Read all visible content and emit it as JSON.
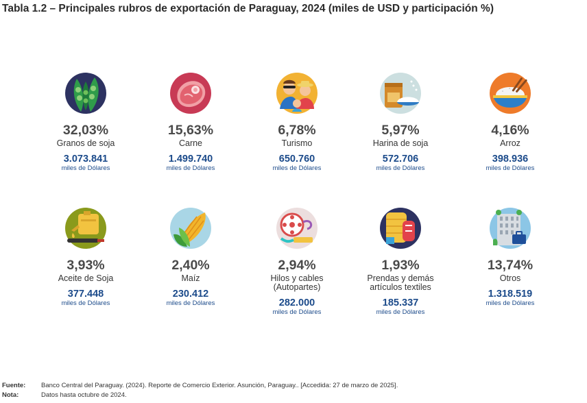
{
  "title": "Tabla 1.2 – Principales rubros de exportación de Paraguay, 2024 (miles de USD y participación %)",
  "items": [
    {
      "icon": "soybean-icon",
      "pct": "32,03%",
      "label": "Granos de soja",
      "value": "3.073.841",
      "unit": "miles de Dólares"
    },
    {
      "icon": "meat-icon",
      "pct": "15,63%",
      "label": "Carne",
      "value": "1.499.740",
      "unit": "miles de Dólares"
    },
    {
      "icon": "tourists-icon",
      "pct": "6,78%",
      "label": "Turismo",
      "value": "650.760",
      "unit": "miles de Dólares"
    },
    {
      "icon": "flour-icon",
      "pct": "5,97%",
      "label": "Harina de soja",
      "value": "572.706",
      "unit": "miles de Dólares"
    },
    {
      "icon": "rice-bowl-icon",
      "pct": "4,16%",
      "label": "Arroz",
      "value": "398.936",
      "unit": "miles de Dólares"
    },
    {
      "icon": "oil-can-icon",
      "pct": "3,93%",
      "label": "Aceite de Soja",
      "value": "377.448",
      "unit": "miles de Dólares"
    },
    {
      "icon": "corn-icon",
      "pct": "2,40%",
      "label": "Maíz",
      "value": "230.412",
      "unit": "miles de Dólares"
    },
    {
      "icon": "cable-reel-icon",
      "pct": "2,94%",
      "label": "Hilos y cables",
      "label2": "(Autopartes)",
      "value": "282.000",
      "unit": "miles de Dólares"
    },
    {
      "icon": "textiles-icon",
      "pct": "1,93%",
      "label": "Prendas y demás",
      "label2": "artículos textiles",
      "value": "185.337",
      "unit": "miles de Dólares"
    },
    {
      "icon": "building-icon",
      "pct": "13,74%",
      "label": "Otros",
      "value": "1.318.519",
      "unit": "miles de Dólares"
    }
  ],
  "footer": {
    "source_key": "Fuente:",
    "source": "Banco Central del Paraguay. (2024). Reporte de Comercio Exterior. Asunción, Paraguay.. [Accedida: 27 de marzo de 2025].",
    "note_key": "Nota:",
    "note": "Datos hasta octubre de 2024."
  },
  "colors": {
    "value": "#1b4a8a",
    "icon_bg": "#2d3261"
  }
}
